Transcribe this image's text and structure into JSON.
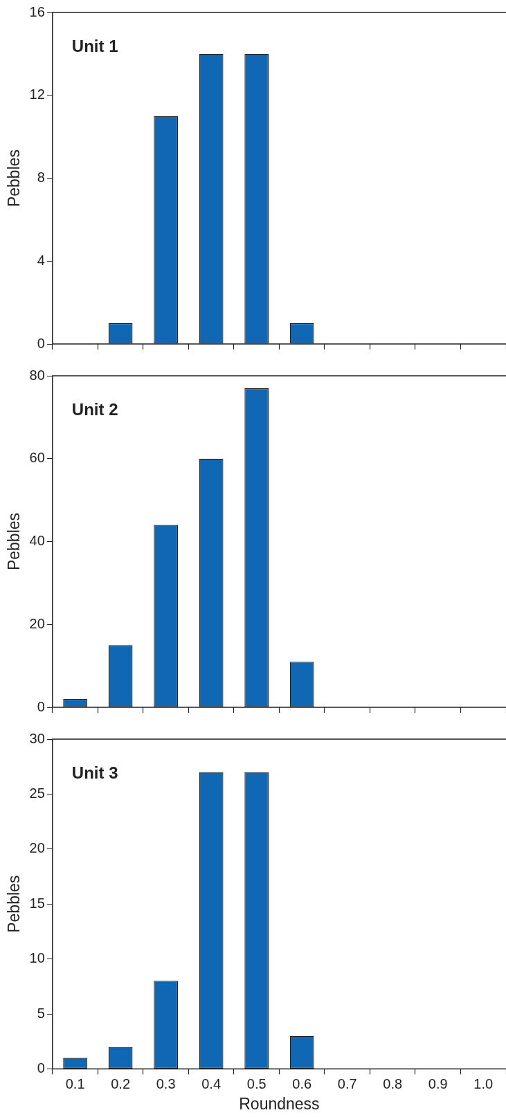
{
  "chart_data": [
    {
      "type": "bar",
      "categories": [
        "0.1",
        "0.2",
        "0.3",
        "0.4",
        "0.5",
        "0.6",
        "0.7",
        "0.8",
        "0.9",
        "1.0"
      ],
      "ylabel": "Pebbles",
      "annotations": [
        "Unit 1"
      ],
      "tick_labels": "y",
      "grid": false,
      "legend": false,
      "series": [
        {
          "color": "#1068b4",
          "values": [
            0,
            1,
            11,
            14,
            14,
            1,
            0,
            0,
            0,
            0
          ]
        }
      ],
      "ylim": [
        0,
        16
      ],
      "yticks": [
        0,
        4,
        8,
        12,
        16
      ]
    },
    {
      "type": "bar",
      "categories": [
        "0.1",
        "0.2",
        "0.3",
        "0.4",
        "0.5",
        "0.6",
        "0.7",
        "0.8",
        "0.9",
        "1.0"
      ],
      "ylabel": "Pebbles",
      "annotations": [
        "Unit 2"
      ],
      "tick_labels": "y",
      "grid": false,
      "legend": false,
      "series": [
        {
          "color": "#1068b4",
          "values": [
            2,
            15,
            44,
            60,
            77,
            11,
            0,
            0,
            0,
            0
          ]
        }
      ],
      "ylim": [
        0,
        80
      ],
      "yticks": [
        0,
        20,
        40,
        60,
        80
      ]
    },
    {
      "type": "bar",
      "categories": [
        "0.1",
        "0.2",
        "0.3",
        "0.4",
        "0.5",
        "0.6",
        "0.7",
        "0.8",
        "0.9",
        "1.0"
      ],
      "xlabel": "Roundness",
      "ylabel": "Pebbles",
      "annotations": [
        "Unit 3"
      ],
      "grid": false,
      "legend": false,
      "series": [
        {
          "color": "#1068b4",
          "values": [
            1,
            2,
            8,
            27,
            27,
            3,
            0,
            0,
            0,
            0
          ]
        }
      ],
      "ylim": [
        0,
        30
      ],
      "yticks": [
        0,
        5,
        10,
        15,
        20,
        25,
        30
      ]
    }
  ]
}
